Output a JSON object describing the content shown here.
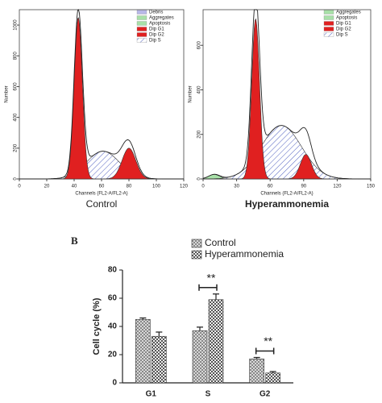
{
  "chart_data": [
    {
      "type": "cytometry",
      "caption": "Control",
      "x_label": "Channels (FL2-A/FL2-A)",
      "y_label": "Number",
      "xlim": [
        0,
        120
      ],
      "xticks": [
        0,
        20,
        40,
        60,
        80,
        100,
        120
      ],
      "ylim": [
        0,
        1100
      ],
      "yticks": [
        0,
        200,
        400,
        600,
        800,
        1000
      ],
      "legend": [
        {
          "name": "Debris",
          "color": "#b8b8e8"
        },
        {
          "name": "Aggregates",
          "color": "#a8e0a8"
        },
        {
          "name": "Apoptosis",
          "color": "#a8e0a8"
        },
        {
          "name": "Dip G1",
          "color": "#e02020"
        },
        {
          "name": "Dip G2",
          "color": "#e02020"
        },
        {
          "name": "Dip S",
          "color": "hatch"
        }
      ],
      "series": [
        {
          "name": "Dip S",
          "color": "hatch",
          "mean": 61,
          "sd": 12,
          "peak": 180
        },
        {
          "name": "Dip G2",
          "color": "#e02020",
          "mean": 80,
          "sd": 5,
          "peak": 200
        },
        {
          "name": "Dip G1",
          "color": "#e02020",
          "mean": 43,
          "sd": 3,
          "peak": 1050
        }
      ]
    },
    {
      "type": "cytometry",
      "caption": "Hyperammonemia",
      "x_label": "Channels (FL2-A/FL2-A)",
      "y_label": "Number",
      "xlim": [
        0,
        150
      ],
      "xticks": [
        0,
        30,
        60,
        90,
        120,
        150
      ],
      "ylim": [
        0,
        760
      ],
      "yticks": [
        0,
        200,
        400,
        600
      ],
      "legend": [
        {
          "name": "Aggregates",
          "color": "#a8e0a8"
        },
        {
          "name": "Apoptosis",
          "color": "#a8e0a8"
        },
        {
          "name": "Dip G1",
          "color": "#e02020"
        },
        {
          "name": "Dip G2",
          "color": "#e02020"
        },
        {
          "name": "Dip S",
          "color": "hatch"
        }
      ],
      "series": [
        {
          "name": "Apoptosis",
          "color": "#a8e0a8",
          "mean": 10,
          "sd": 5,
          "peak": 20
        },
        {
          "name": "Dip S",
          "color": "hatch",
          "mean": 70,
          "sd": 18,
          "peak": 240
        },
        {
          "name": "Dip G2",
          "color": "#e02020",
          "mean": 92,
          "sd": 5,
          "peak": 110
        },
        {
          "name": "Dip G1",
          "color": "#e02020",
          "mean": 47,
          "sd": 3.5,
          "peak": 720
        }
      ]
    },
    {
      "type": "bar",
      "panel": "B",
      "y_label": "Cell cycle (%)",
      "categories": [
        "G1",
        "S",
        "G2"
      ],
      "ylim": [
        0,
        80
      ],
      "yticks": [
        0,
        20,
        40,
        60,
        80
      ],
      "series": [
        {
          "name": "Control",
          "color": "#c8c8c8",
          "values": [
            45,
            37,
            17
          ],
          "errors": [
            1,
            2.5,
            1
          ]
        },
        {
          "name": "Hyperammonemia",
          "color": "#707070",
          "values": [
            33,
            59,
            7
          ],
          "errors": [
            3,
            4,
            1
          ]
        }
      ],
      "annotations": [
        "**",
        "**"
      ]
    }
  ]
}
